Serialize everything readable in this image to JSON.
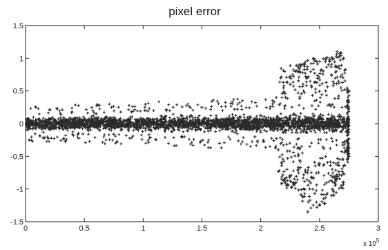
{
  "chart_data": {
    "type": "scatter",
    "title": "pixel error",
    "xlabel": "",
    "ylabel": "",
    "xlim": [
      0,
      300000
    ],
    "ylim": [
      -1.5,
      1.5
    ],
    "x_ticks": [
      0,
      50000,
      100000,
      150000,
      200000,
      250000,
      300000
    ],
    "x_tick_labels": [
      "0",
      "0.5",
      "1",
      "1.5",
      "2",
      "2.5",
      "3"
    ],
    "y_ticks": [
      -1.5,
      -1,
      -0.5,
      0,
      0.5,
      1,
      1.5
    ],
    "y_tick_labels": [
      "-1.5",
      "-1",
      "-0.5",
      "0",
      "0.5",
      "1",
      "1.5"
    ],
    "x_multiplier_label": "x 10",
    "x_multiplier_exponent": "5",
    "grid": false,
    "legend": "none",
    "marker": "+",
    "marker_color": "#2b2b2b",
    "series": [
      {
        "name": "",
        "x": [
          0,
          15000,
          30000,
          45000,
          60000,
          75000,
          90000,
          105000,
          120000,
          135000,
          150000,
          165000,
          180000,
          195000,
          210000,
          215000,
          225000,
          230000,
          235000,
          240000,
          245000,
          250000,
          255000,
          260000,
          265000,
          270000,
          275000,
          275000
        ],
        "y": [
          0.12,
          -0.13,
          0.14,
          -0.15,
          0.15,
          -0.16,
          0.18,
          -0.17,
          0.2,
          -0.2,
          0.25,
          -0.3,
          0.22,
          -0.2,
          0.3,
          -0.4,
          0.6,
          -0.9,
          0.9,
          -1.35,
          1.0,
          -1.25,
          0.95,
          -1.1,
          1.1,
          -0.9,
          0.5,
          -0.5
        ]
      }
    ],
    "envelope": {
      "x": [
        0,
        50000,
        100000,
        150000,
        200000,
        210000,
        220000,
        230000,
        240000,
        250000,
        260000,
        270000,
        275000
      ],
      "half_width": [
        0.12,
        0.13,
        0.14,
        0.16,
        0.17,
        0.18,
        0.18,
        0.18,
        0.18,
        0.18,
        0.18,
        0.18,
        0.18
      ]
    },
    "outliers": {
      "x": [
        230000,
        240000,
        250000,
        260000,
        270000,
        275000
      ],
      "upper": [
        0.9,
        1.0,
        1.0,
        1.05,
        1.1,
        0.5
      ],
      "lower": [
        -1.0,
        -1.4,
        -1.3,
        -1.15,
        -1.0,
        -0.5
      ]
    }
  }
}
